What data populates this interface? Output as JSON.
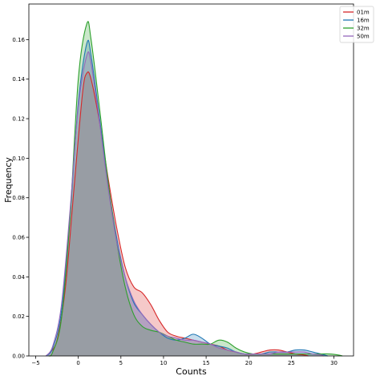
{
  "chart_data": {
    "type": "area",
    "title": "",
    "xlabel": "Counts",
    "ylabel": "Frequency",
    "xlim": [
      -5.8,
      32.3
    ],
    "ylim": [
      0,
      0.178
    ],
    "xticks": [
      -5,
      0,
      5,
      10,
      15,
      20,
      25,
      30
    ],
    "yticks": [
      0.0,
      0.02,
      0.04,
      0.06,
      0.08,
      0.1,
      0.12,
      0.14,
      0.16
    ],
    "ytick_labels": [
      "0.00",
      "0.02",
      "0.04",
      "0.06",
      "0.08",
      "0.10",
      "0.12",
      "0.14",
      "0.16"
    ],
    "grid": false,
    "legend_position": "top-right",
    "series": [
      {
        "name": "01m",
        "color": "#d62728",
        "x": [
          -3.5,
          -2.5,
          -1.5,
          -0.5,
          0.5,
          1.0,
          1.5,
          2.5,
          3.5,
          4.5,
          5.5,
          6.5,
          7.5,
          8.5,
          9.5,
          10.5,
          11.5,
          12.5,
          13.5,
          14.5,
          15.5,
          16.5,
          17.5,
          18.5,
          19.5,
          20.5,
          21.5,
          22.5,
          23.5,
          24.5,
          25.5,
          26.5,
          27.0
        ],
        "y": [
          0.001,
          0.008,
          0.035,
          0.085,
          0.133,
          0.143,
          0.14,
          0.118,
          0.09,
          0.065,
          0.045,
          0.035,
          0.032,
          0.026,
          0.018,
          0.012,
          0.01,
          0.009,
          0.008,
          0.007,
          0.006,
          0.005,
          0.003,
          0.002,
          0.001,
          0.001,
          0.002,
          0.003,
          0.003,
          0.002,
          0.001,
          0.0005,
          0.0
        ]
      },
      {
        "name": "16m",
        "color": "#1f77b4",
        "x": [
          -3.8,
          -3.0,
          -2.0,
          -1.0,
          0.0,
          1.0,
          1.5,
          2.5,
          3.5,
          4.5,
          5.5,
          6.5,
          7.5,
          8.5,
          9.5,
          10.5,
          11.5,
          12.5,
          13.5,
          14.5,
          15.5,
          16.5,
          17.5,
          18.5,
          19.5,
          20.5,
          21.5,
          22.5,
          23.5,
          24.5,
          25.5,
          26.5,
          27.5,
          28.5,
          29.3
        ],
        "y": [
          0.0,
          0.004,
          0.022,
          0.069,
          0.128,
          0.158,
          0.152,
          0.12,
          0.087,
          0.06,
          0.04,
          0.027,
          0.021,
          0.016,
          0.012,
          0.009,
          0.008,
          0.009,
          0.011,
          0.009,
          0.006,
          0.005,
          0.004,
          0.002,
          0.001,
          0.001,
          0.001,
          0.002,
          0.002,
          0.002,
          0.003,
          0.003,
          0.002,
          0.001,
          0.0
        ]
      },
      {
        "name": "32m",
        "color": "#2ca02c",
        "x": [
          -3.5,
          -3.0,
          -2.0,
          -1.0,
          0.0,
          1.0,
          1.5,
          2.5,
          3.5,
          4.5,
          5.5,
          6.5,
          7.5,
          8.5,
          9.5,
          10.5,
          11.5,
          12.5,
          13.5,
          14.5,
          15.5,
          16.5,
          17.5,
          18.5,
          19.5,
          20.5,
          21.5,
          22.5,
          23.5,
          24.5,
          25.5,
          26.5,
          27.5,
          28.5,
          29.5,
          30.5,
          31.0
        ],
        "y": [
          0.0,
          0.002,
          0.018,
          0.068,
          0.14,
          0.168,
          0.16,
          0.125,
          0.088,
          0.058,
          0.035,
          0.021,
          0.015,
          0.013,
          0.012,
          0.01,
          0.008,
          0.007,
          0.006,
          0.006,
          0.006,
          0.008,
          0.007,
          0.004,
          0.002,
          0.001,
          0.001,
          0.001,
          0.001,
          0.001,
          0.001,
          0.001,
          0.001,
          0.001,
          0.001,
          0.0005,
          0.0
        ]
      },
      {
        "name": "50m",
        "color": "#9467bd",
        "x": [
          -3.8,
          -3.0,
          -2.0,
          -1.0,
          0.0,
          1.0,
          1.5,
          2.5,
          3.5,
          4.5,
          5.5,
          6.5,
          7.5,
          8.5,
          9.5,
          10.5,
          11.5,
          12.5,
          13.5,
          14.5,
          15.5,
          16.5,
          17.5,
          18.5,
          19.5,
          20.5,
          21.5,
          22.5,
          23.5,
          24.5,
          25.5,
          26.5,
          27.5,
          28.5,
          28.8
        ],
        "y": [
          0.0,
          0.005,
          0.025,
          0.072,
          0.126,
          0.152,
          0.148,
          0.118,
          0.085,
          0.058,
          0.04,
          0.028,
          0.021,
          0.016,
          0.012,
          0.01,
          0.009,
          0.008,
          0.008,
          0.007,
          0.006,
          0.004,
          0.003,
          0.002,
          0.001,
          0.001,
          0.001,
          0.001,
          0.002,
          0.002,
          0.002,
          0.002,
          0.001,
          0.0005,
          0.0
        ]
      }
    ]
  }
}
